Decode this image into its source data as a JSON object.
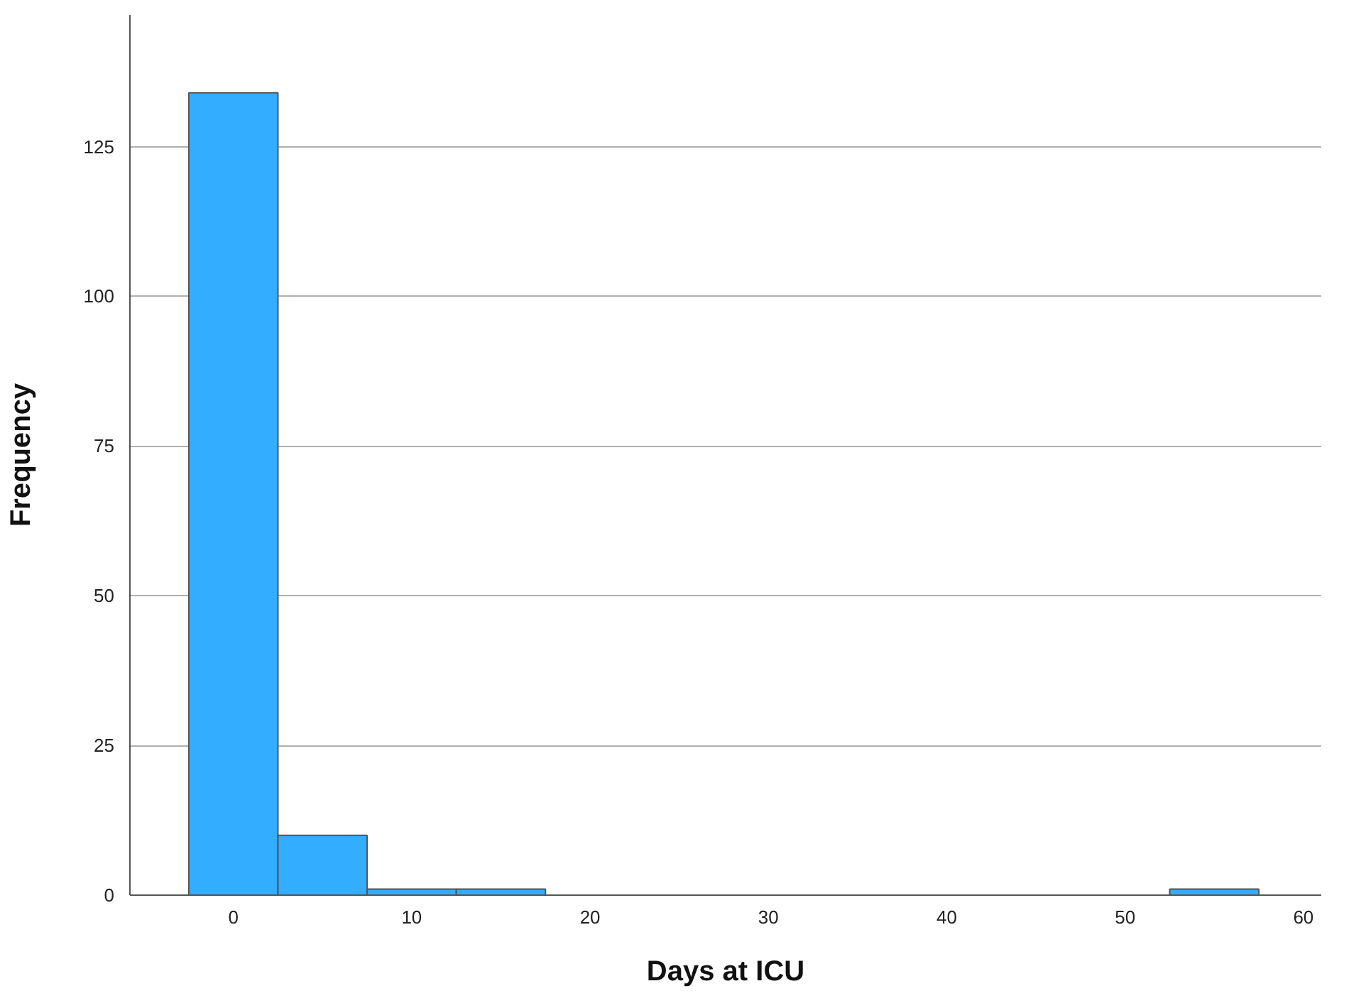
{
  "chart_data": {
    "type": "histogram",
    "xlabel": "Days at ICU",
    "ylabel": "Frequency",
    "bins": [
      -2.5,
      2.5,
      7.5,
      12.5,
      17.5,
      22.5,
      27.5,
      32.5,
      37.5,
      42.5,
      47.5,
      52.5,
      57.5
    ],
    "values": [
      134,
      10,
      1,
      1,
      0,
      0,
      0,
      0,
      0,
      0,
      0,
      1
    ],
    "color": "#33adff",
    "xlim": [
      -5.8,
      61
    ],
    "xticks": [
      0,
      10,
      20,
      30,
      40,
      50,
      60
    ],
    "ylim": [
      0,
      147
    ],
    "yticks": [
      0,
      25,
      50,
      75,
      100,
      125
    ],
    "grid": "y"
  }
}
